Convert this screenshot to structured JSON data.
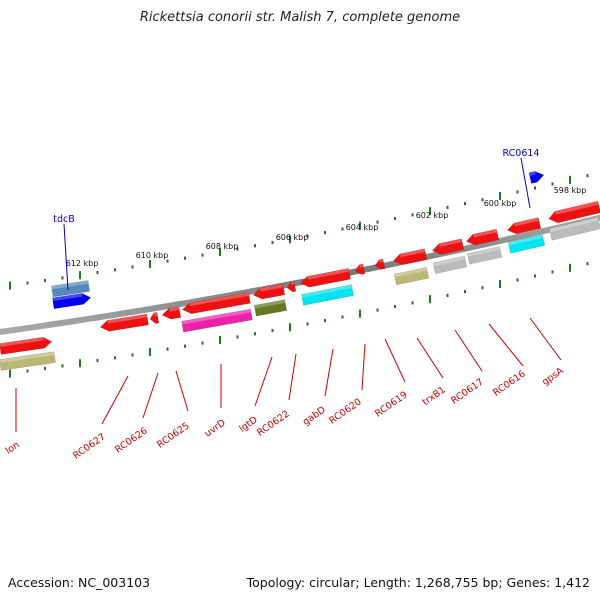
{
  "title": "Rickettsia conorii str. Malish 7, complete genome",
  "accession_text": "Accession: NC_003103",
  "topology_text": "Topology: circular; Length: 1,268,755 bp; Genes: 1,412",
  "colors": {
    "gene_arrow": "#ee1111",
    "pink": "#ee22aa",
    "cyan": "#00e5ee",
    "olive": "#bbb877",
    "green": "#667722",
    "gray": "#bbbbbb",
    "blue": "#0000ee",
    "steelblue": "#5588bb",
    "backbone": "#888888",
    "tick": "#227722",
    "label_red": "#cc0000",
    "label_blue": "#0000cc"
  },
  "scale_labels": [
    "612 kbp",
    "610 kbp",
    "608 kbp",
    "606 kbp",
    "604 kbp",
    "602 kbp",
    "600 kbp",
    "598 kbp"
  ],
  "gene_labels": [
    "tdcB",
    "RC0614",
    "lon",
    "RC0627",
    "RC0626",
    "RC0625",
    "uvrD",
    "lgtD",
    "RC0622",
    "gabD",
    "RC0620",
    "RC0619",
    "trxB1",
    "RC0617",
    "RC0616",
    "gpsA"
  ]
}
